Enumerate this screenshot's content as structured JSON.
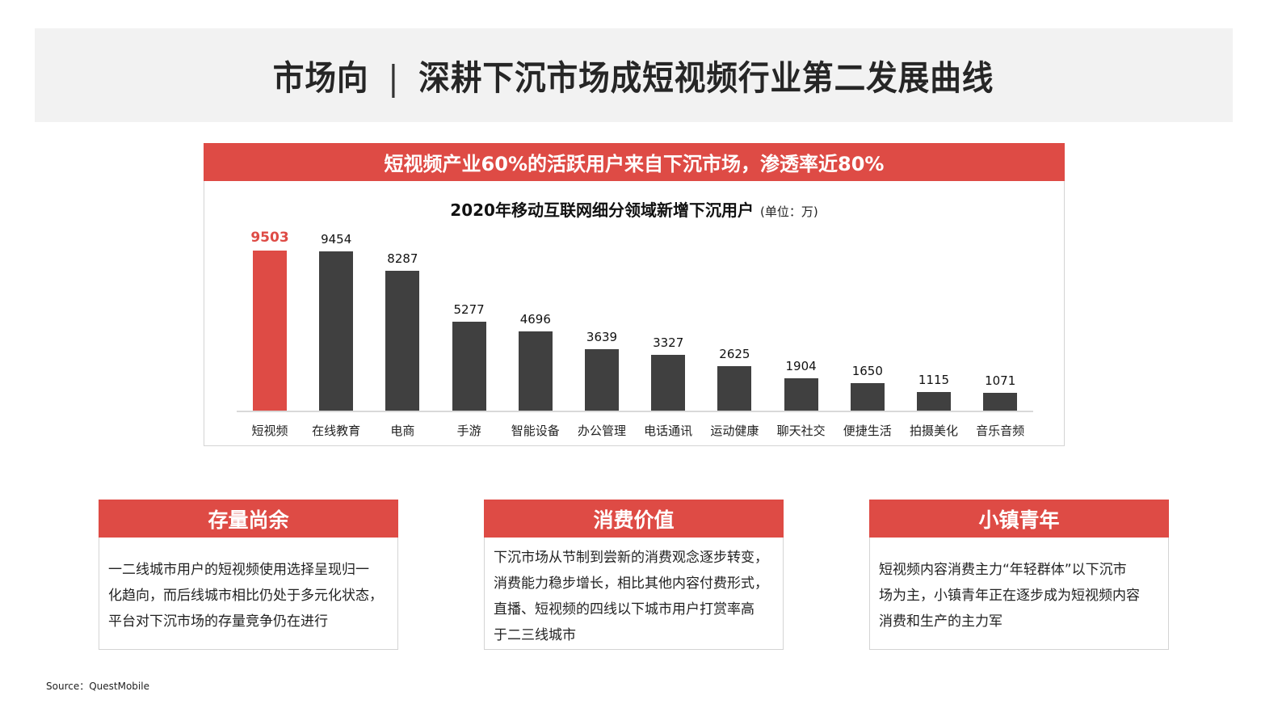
{
  "header": {
    "section": "市场向",
    "separator": "|",
    "title": "深耕下沉市场成短视频行业第二发展曲线"
  },
  "chart_panel": {
    "banner": "短视频产业60%的活跃用户来自下沉市场，渗透率近80%",
    "title": "2020年移动互联网细分领域新增下沉用户",
    "unit": "(单位：万)"
  },
  "chart_data": {
    "type": "bar",
    "title": "2020年移动互联网细分领域新增下沉用户",
    "unit": "万",
    "xlabel": "",
    "ylabel": "",
    "categories": [
      "短视频",
      "在线教育",
      "电商",
      "手游",
      "智能设备",
      "办公管理",
      "电话通讯",
      "运动健康",
      "聊天社交",
      "便捷生活",
      "拍摄美化",
      "音乐音频"
    ],
    "values": [
      9503,
      9454,
      8287,
      5277,
      4696,
      3639,
      3327,
      2625,
      1904,
      1650,
      1115,
      1071
    ],
    "highlight_index": 0,
    "colors": {
      "highlight": "#de4b45",
      "default": "#404040"
    },
    "ylim": [
      0,
      9503
    ],
    "grid": false,
    "legend": "none",
    "data_labels": true
  },
  "cards": [
    {
      "title": "存量尚余",
      "lines": [
        "一二线城市用户的短视频使用选择呈现归一",
        "化趋向，而后线城市相比仍处于多元化状态，",
        "平台对下沉市场的存量竞争仍在进行"
      ]
    },
    {
      "title": "消费价值",
      "lines": [
        "下沉市场从节制到尝新的消费观念逐步转变，",
        "消费能力稳步增长，相比其他内容付费形式，",
        "直播、短视频的四线以下城市用户打赏率高",
        "于二三线城市"
      ]
    },
    {
      "title": "小镇青年",
      "lines": [
        "短视频内容消费主力“年轻群体”以下沉市",
        "场为主，小镇青年正在逐步成为短视频内容",
        "消费和生产的主力军"
      ]
    }
  ],
  "footer": {
    "source": "Source：QuestMobile"
  },
  "colors": {
    "accent": "#de4b45",
    "bar_default": "#404040",
    "header_bg": "#f2f2f2"
  }
}
